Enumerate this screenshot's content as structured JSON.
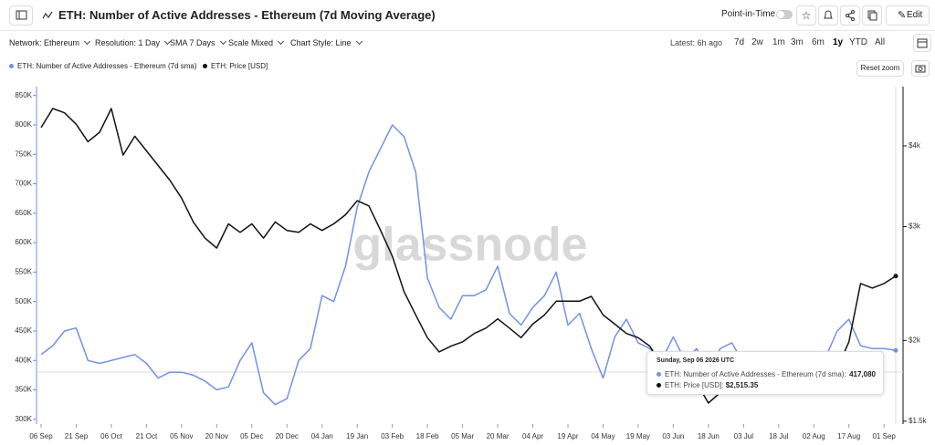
{
  "header": {
    "title": "ETH: Number of Active Addresses - Ethereum (7d Moving Average)",
    "point_in_time": "Point-in-Time",
    "edit": "Edit"
  },
  "toolbar": {
    "options": [
      "Network: Ethereum",
      "Resolution: 1 Day",
      "SMA 7 Days",
      "Scale Mixed",
      "Chart Style: Line"
    ],
    "latest": "Latest: 6h ago",
    "ranges": [
      "7d",
      "2w",
      "1m",
      "3m",
      "6m",
      "1y",
      "YTD",
      "All"
    ],
    "reset_zoom": "Reset zoom"
  },
  "chart_data": {
    "type": "line",
    "watermark": "glassnode",
    "categories": [
      "06 Sep",
      null,
      null,
      "21 Sep",
      null,
      null,
      "06 Oct",
      null,
      null,
      "21 Oct",
      null,
      null,
      "05 Nov",
      null,
      null,
      "20 Nov",
      null,
      null,
      "05 Dec",
      null,
      null,
      "20 Dec",
      null,
      null,
      "04 Jan",
      null,
      null,
      "19 Jan",
      null,
      null,
      "03 Feb",
      null,
      null,
      "18 Feb",
      null,
      null,
      "05 Mar",
      null,
      null,
      "20 Mar",
      null,
      null,
      "04 Apr",
      null,
      null,
      "19 Apr",
      null,
      null,
      "04 May",
      null,
      null,
      "19 May",
      null,
      null,
      "03 Jun",
      null,
      null,
      "18 Jun",
      null,
      null,
      "03 Jul",
      null,
      null,
      "18 Jul",
      null,
      null,
      "02 Aug",
      null,
      null,
      "17 Aug",
      null,
      null,
      "01 Sep",
      null
    ],
    "series": [
      {
        "name": "ETH: Number of Active Addresses - Ethereum (7d sma)",
        "color": "#7391e3",
        "axis": "y",
        "values": [
          410000,
          425000,
          450000,
          455000,
          400000,
          395000,
          400000,
          405000,
          410000,
          395000,
          370000,
          380000,
          380000,
          375000,
          365000,
          350000,
          355000,
          400000,
          430000,
          345000,
          325000,
          335000,
          400000,
          420000,
          510000,
          500000,
          560000,
          660000,
          720000,
          760000,
          800000,
          780000,
          720000,
          540000,
          490000,
          470000,
          510000,
          510000,
          520000,
          560000,
          480000,
          460000,
          490000,
          510000,
          550000,
          460000,
          480000,
          420000,
          370000,
          440000,
          470000,
          430000,
          420000,
          400000,
          440000,
          400000,
          420000,
          380000,
          420000,
          430000,
          395000,
          400000,
          400000,
          400000,
          405000,
          415000,
          400000,
          405000,
          450000,
          470000,
          425000,
          420000,
          420000,
          417080
        ]
      },
      {
        "name": "ETH: Price [USD]",
        "color": "#111111",
        "axis": "y2",
        "values": [
          4270,
          4570,
          4500,
          4320,
          4060,
          4200,
          4570,
          3870,
          4140,
          3930,
          3730,
          3540,
          3320,
          3050,
          2880,
          2780,
          3030,
          2940,
          3030,
          2880,
          3050,
          2960,
          2940,
          3030,
          2960,
          3030,
          3130,
          3290,
          3230,
          2960,
          2700,
          2380,
          2190,
          2020,
          1920,
          1960,
          1990,
          2050,
          2090,
          2160,
          2090,
          2020,
          2120,
          2190,
          2300,
          2300,
          2300,
          2340,
          2190,
          2120,
          2050,
          2020,
          1960,
          1830,
          1690,
          1660,
          1720,
          1600,
          1660,
          1720,
          1750,
          1720,
          1720,
          1720,
          1750,
          1780,
          1720,
          1750,
          1810,
          1990,
          2450,
          2410,
          2450,
          2515.35
        ]
      }
    ],
    "ylim": [
      292000,
      865000
    ],
    "yticks": [
      {
        "value": 300000,
        "label": "300K"
      },
      {
        "value": 350000,
        "label": "350K"
      },
      {
        "value": 400000,
        "label": "400K"
      },
      {
        "value": 450000,
        "label": "450K"
      },
      {
        "value": 500000,
        "label": "500K"
      },
      {
        "value": 550000,
        "label": "550K"
      },
      {
        "value": 600000,
        "label": "600K"
      },
      {
        "value": 650000,
        "label": "650K"
      },
      {
        "value": 700000,
        "label": "700K"
      },
      {
        "value": 750000,
        "label": "750K"
      },
      {
        "value": 800000,
        "label": "800K"
      },
      {
        "value": 850000,
        "label": "850K"
      }
    ],
    "y2lim": [
      1485,
      4940
    ],
    "y2scale": "log",
    "y2ticks": [
      {
        "value": 1500,
        "label": "$1.5k"
      },
      {
        "value": 2000,
        "label": "$2k"
      },
      {
        "value": 3000,
        "label": "$3k"
      },
      {
        "value": 4000,
        "label": "$4k"
      }
    ],
    "legend": "top-left",
    "tooltip": {
      "title": "Sunday, Sep 06 2026 UTC",
      "rows": [
        {
          "label": "ETH: Number of Active Addresses - Ethereum (7d sma):",
          "value_label": "417,080"
        },
        {
          "label": "ETH: Price [USD]:",
          "value_label": "$2,515.35"
        }
      ]
    }
  }
}
